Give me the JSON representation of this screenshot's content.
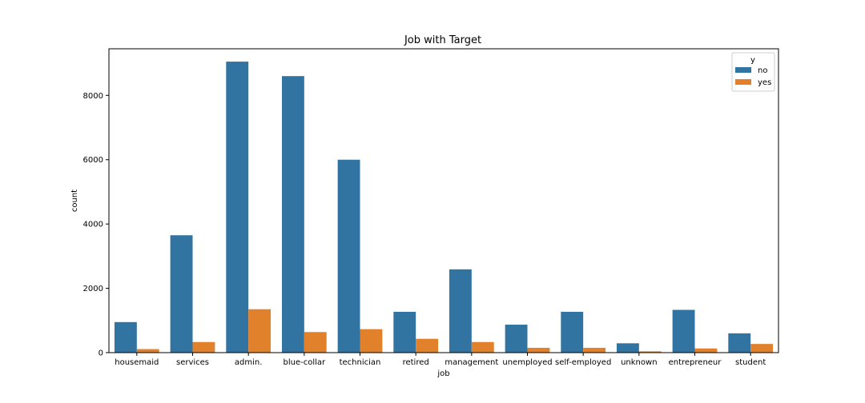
{
  "chart_data": {
    "type": "bar",
    "title": "Job with Target",
    "xlabel": "job",
    "ylabel": "count",
    "ylim": [
      0,
      9450
    ],
    "yticks": [
      0,
      2000,
      4000,
      6000,
      8000
    ],
    "grid": false,
    "legend": {
      "title": "y",
      "placement": "top-right"
    },
    "categories": [
      "housemaid",
      "services",
      "admin.",
      "blue-collar",
      "technician",
      "retired",
      "management",
      "unemployed",
      "self-employed",
      "unknown",
      "entrepreneur",
      "student"
    ],
    "series": [
      {
        "name": "no",
        "color": "#3274a1",
        "values": [
          950,
          3650,
          9050,
          8600,
          6000,
          1270,
          2590,
          870,
          1270,
          290,
          1330,
          600
        ]
      },
      {
        "name": "yes",
        "color": "#e1812c",
        "values": [
          110,
          330,
          1350,
          640,
          730,
          430,
          330,
          150,
          150,
          40,
          130,
          270
        ]
      }
    ]
  }
}
